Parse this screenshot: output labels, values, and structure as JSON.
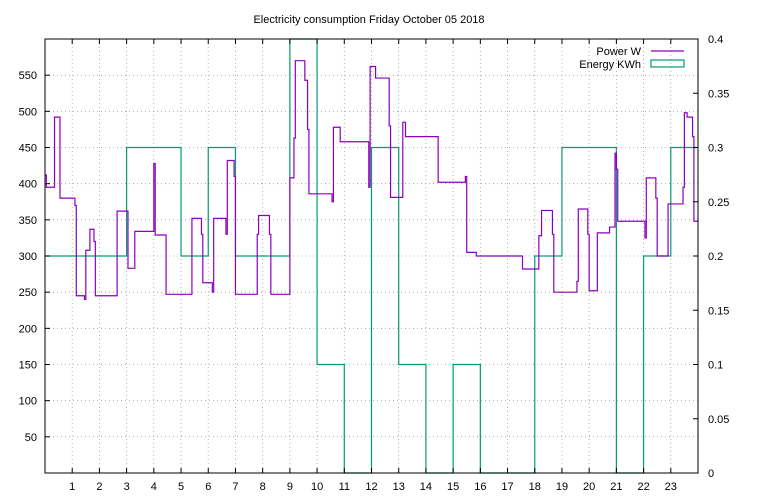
{
  "chart_data": {
    "type": "line",
    "title": "Electricity consumption Friday October 05 2018",
    "x": {
      "range": [
        0,
        24
      ],
      "ticks": [
        1,
        2,
        3,
        4,
        5,
        6,
        7,
        8,
        9,
        10,
        11,
        12,
        13,
        14,
        15,
        16,
        17,
        18,
        19,
        20,
        21,
        22,
        23
      ],
      "tick_labels": [
        "1",
        "2",
        "3",
        "4",
        "5",
        "6",
        "7",
        "8",
        "9",
        "10",
        "11",
        "12",
        "13",
        "14",
        "15",
        "16",
        "17",
        "18",
        "19",
        "20",
        "21",
        "22",
        "23"
      ]
    },
    "y_left": {
      "range": [
        0,
        600
      ],
      "ticks": [
        50,
        100,
        150,
        200,
        250,
        300,
        350,
        400,
        450,
        500,
        550
      ],
      "tick_labels": [
        "50",
        "100",
        "150",
        "200",
        "250",
        "300",
        "350",
        "400",
        "450",
        "500",
        "550"
      ]
    },
    "y_right": {
      "range": [
        0,
        0.4
      ],
      "ticks": [
        0,
        0.05,
        0.1,
        0.15,
        0.2,
        0.25,
        0.3,
        0.35,
        0.4
      ],
      "tick_labels": [
        "0",
        "0.05",
        "0.1",
        "0.15",
        "0.2",
        "0.25",
        "0.3",
        "0.35",
        "0.4"
      ]
    },
    "grid": true,
    "legend_position": "top-right",
    "series": [
      {
        "name": "Power W",
        "axis": "left",
        "style": "steps",
        "color": "#8b00bf",
        "points": [
          [
            0.0,
            412
          ],
          [
            0.05,
            395
          ],
          [
            0.3,
            395
          ],
          [
            0.35,
            492
          ],
          [
            0.5,
            492
          ],
          [
            0.55,
            380
          ],
          [
            1.05,
            380
          ],
          [
            1.1,
            370
          ],
          [
            1.15,
            245
          ],
          [
            1.4,
            245
          ],
          [
            1.45,
            240
          ],
          [
            1.5,
            308
          ],
          [
            1.6,
            308
          ],
          [
            1.65,
            337
          ],
          [
            1.75,
            337
          ],
          [
            1.8,
            320
          ],
          [
            1.85,
            245
          ],
          [
            2.0,
            245
          ],
          [
            2.5,
            245
          ],
          [
            2.6,
            245
          ],
          [
            2.65,
            362
          ],
          [
            3.0,
            362
          ],
          [
            3.05,
            283
          ],
          [
            3.25,
            283
          ],
          [
            3.3,
            334
          ],
          [
            3.95,
            334
          ],
          [
            4.0,
            428
          ],
          [
            4.05,
            329
          ],
          [
            4.4,
            329
          ],
          [
            4.45,
            247
          ],
          [
            5.0,
            247
          ],
          [
            5.35,
            247
          ],
          [
            5.4,
            352
          ],
          [
            5.7,
            352
          ],
          [
            5.75,
            330
          ],
          [
            5.8,
            263
          ],
          [
            6.1,
            263
          ],
          [
            6.15,
            250
          ],
          [
            6.2,
            352
          ],
          [
            6.6,
            352
          ],
          [
            6.65,
            330
          ],
          [
            6.7,
            432
          ],
          [
            6.9,
            432
          ],
          [
            6.95,
            410
          ],
          [
            7.0,
            247
          ],
          [
            7.75,
            247
          ],
          [
            7.8,
            330
          ],
          [
            7.85,
            356
          ],
          [
            8.2,
            356
          ],
          [
            8.25,
            330
          ],
          [
            8.3,
            247
          ],
          [
            8.9,
            247
          ],
          [
            9.0,
            408
          ],
          [
            9.1,
            408
          ],
          [
            9.15,
            463
          ],
          [
            9.2,
            570
          ],
          [
            9.5,
            570
          ],
          [
            9.55,
            543
          ],
          [
            9.65,
            475
          ],
          [
            9.7,
            386
          ],
          [
            10.5,
            386
          ],
          [
            10.55,
            375
          ],
          [
            10.6,
            478
          ],
          [
            10.8,
            478
          ],
          [
            10.85,
            458
          ],
          [
            11.85,
            458
          ],
          [
            11.9,
            395
          ],
          [
            11.95,
            562
          ],
          [
            12.1,
            562
          ],
          [
            12.15,
            546
          ],
          [
            12.6,
            546
          ],
          [
            12.65,
            480
          ],
          [
            12.7,
            381
          ],
          [
            13.1,
            381
          ],
          [
            13.15,
            485
          ],
          [
            13.2,
            485
          ],
          [
            13.25,
            465
          ],
          [
            14.4,
            465
          ],
          [
            14.45,
            402
          ],
          [
            15.4,
            402
          ],
          [
            15.45,
            410
          ],
          [
            15.5,
            305
          ],
          [
            15.8,
            305
          ],
          [
            15.85,
            300
          ],
          [
            17.5,
            300
          ],
          [
            17.55,
            282
          ],
          [
            18.1,
            282
          ],
          [
            18.15,
            328
          ],
          [
            18.25,
            363
          ],
          [
            18.6,
            363
          ],
          [
            18.65,
            330
          ],
          [
            18.7,
            250
          ],
          [
            19.5,
            250
          ],
          [
            19.55,
            265
          ],
          [
            19.6,
            365
          ],
          [
            19.9,
            365
          ],
          [
            19.95,
            330
          ],
          [
            20.0,
            252
          ],
          [
            20.25,
            252
          ],
          [
            20.3,
            332
          ],
          [
            20.7,
            332
          ],
          [
            20.75,
            340
          ],
          [
            20.9,
            340
          ],
          [
            20.95,
            442
          ],
          [
            21.0,
            420
          ],
          [
            21.05,
            348
          ],
          [
            22.0,
            348
          ],
          [
            22.05,
            325
          ],
          [
            22.1,
            408
          ],
          [
            22.4,
            408
          ],
          [
            22.45,
            380
          ],
          [
            22.5,
            300
          ],
          [
            22.85,
            300
          ],
          [
            22.9,
            372
          ],
          [
            23.4,
            372
          ],
          [
            23.45,
            395
          ],
          [
            23.5,
            498
          ],
          [
            23.6,
            492
          ],
          [
            23.75,
            492
          ],
          [
            23.8,
            465
          ],
          [
            23.85,
            348
          ],
          [
            24.0,
            348
          ]
        ]
      },
      {
        "name": "Energy KWh",
        "axis": "right",
        "style": "histeps",
        "color": "#009e73",
        "values": [
          0.2,
          0.2,
          0.2,
          0.3,
          0.3,
          0.2,
          0.3,
          0.2,
          0.2,
          0.4,
          0.1,
          0,
          0.3,
          0.1,
          0,
          0.1,
          0,
          0,
          0.2,
          0.3,
          0.3,
          0,
          0.2,
          0.3
        ]
      }
    ]
  }
}
